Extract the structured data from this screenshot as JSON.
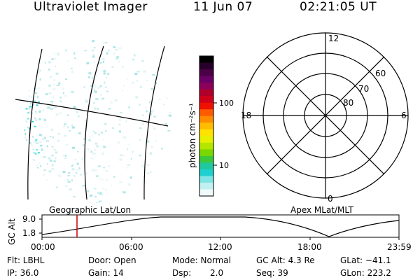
{
  "header": {
    "title": "Ultraviolet Imager",
    "date": "11 Jun 07",
    "time": "02:21:05 UT"
  },
  "colorbar": {
    "unit_label": "photon cm⁻²s⁻¹",
    "ticks": [
      "100",
      "10"
    ],
    "colors": [
      "#000000",
      "#26002a",
      "#4b0046",
      "#6a0066",
      "#8b005a",
      "#b0002a",
      "#d0001a",
      "#f01000",
      "#ff5a00",
      "#ff8c00",
      "#ffbc00",
      "#ffe300",
      "#e6f000",
      "#b4e600",
      "#7ad800",
      "#3cc83c",
      "#20c8a0",
      "#20d0d0",
      "#7ee4e4",
      "#c0f0f0",
      "#f0fafa"
    ]
  },
  "polar_plot": {
    "mlt_labels": {
      "top": "12",
      "left": "18",
      "right": "6",
      "bottom": "0"
    },
    "lat_labels": [
      "60",
      "70",
      "80"
    ]
  },
  "alt_panel": {
    "left_title": "Geographic Lat/Lon",
    "right_title": "Apex MLat/MLT",
    "ylabel": "GC Alt",
    "ymax": "9.0",
    "ymin": "1.8",
    "xticks": [
      "00:00",
      "06:00",
      "12:00",
      "18:00",
      "23:59"
    ],
    "line_color": "#cc0000"
  },
  "info": {
    "flt": "Flt: LBHL",
    "door": "Door: Open",
    "mode": "Mode: Normal",
    "gcalt": "GC Alt: 4.3 Re",
    "glat": "GLat: −41.1",
    "ip": "IP: 36.0",
    "gain": "Gain: 14",
    "dsp_label": "Dsp:",
    "dsp_value": "2.0",
    "seq": "Seq: 39",
    "glon": "GLon: 223.2"
  }
}
